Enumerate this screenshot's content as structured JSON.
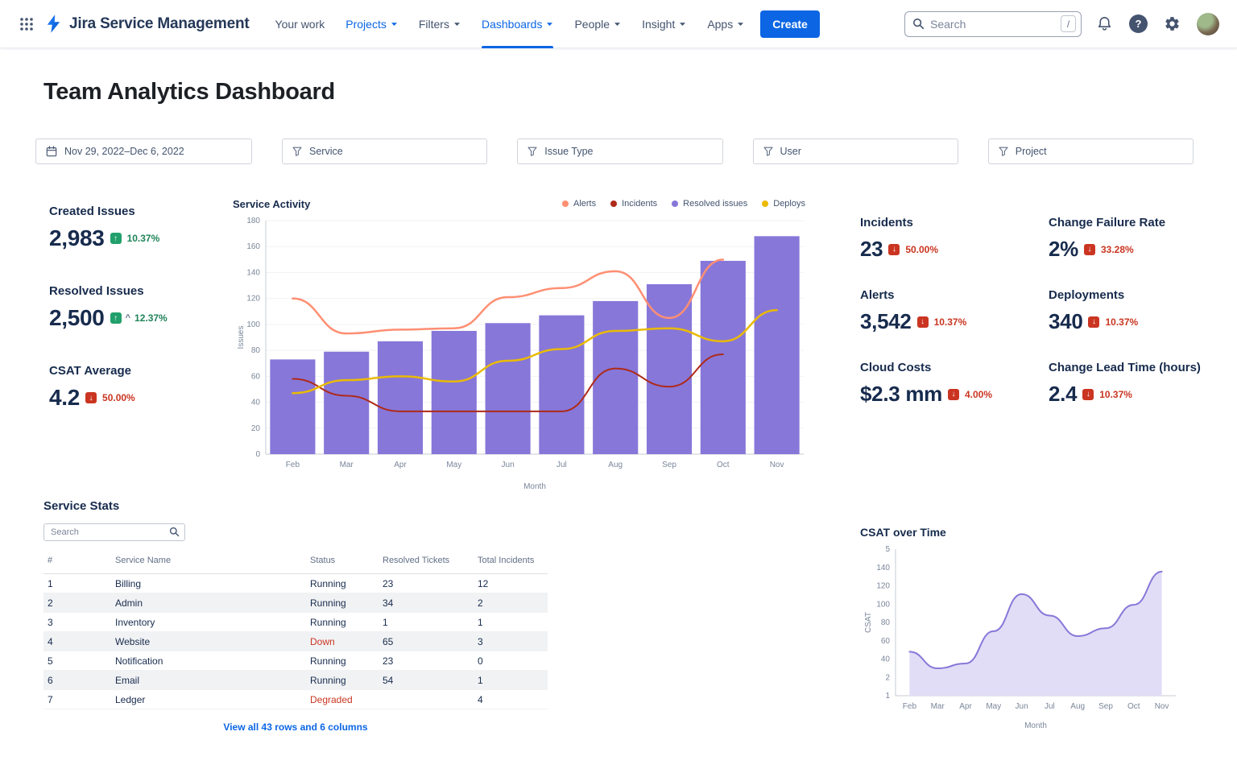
{
  "nav": {
    "app_name": "Jira Service Management",
    "items": [
      {
        "label": "Your work"
      },
      {
        "label": "Projects"
      },
      {
        "label": "Filters"
      },
      {
        "label": "Dashboards"
      },
      {
        "label": "People"
      },
      {
        "label": "Insight"
      },
      {
        "label": "Apps"
      }
    ],
    "create_label": "Create",
    "search_placeholder": "Search",
    "search_shortcut": "/",
    "help_glyph": "?"
  },
  "page": {
    "title": "Team Analytics Dashboard"
  },
  "filters": {
    "date_range": "Nov 29, 2022–Dec 6, 2022",
    "items": [
      "Service",
      "Issue Type",
      "User",
      "Project"
    ]
  },
  "kpis_left": [
    {
      "label": "Created Issues",
      "value": "2,983",
      "delta": "10.37%",
      "direction": "up"
    },
    {
      "label": "Resolved Issues",
      "value": "2,500",
      "caret": "^",
      "delta": "12.37%",
      "direction": "up"
    },
    {
      "label": "CSAT Average",
      "value": "4.2",
      "delta": "50.00%",
      "direction": "down"
    }
  ],
  "kpis_right": [
    {
      "label": "Incidents",
      "value": "23",
      "delta": "50.00%",
      "direction": "down"
    },
    {
      "label": "Change Failure Rate",
      "value": "2%",
      "delta": "33.28%",
      "direction": "down"
    },
    {
      "label": "Alerts",
      "value": "3,542",
      "delta": "10.37%",
      "direction": "down"
    },
    {
      "label": "Deployments",
      "value": "340",
      "delta": "10.37%",
      "direction": "down"
    },
    {
      "label": "Cloud Costs",
      "value": "$2.3 mm",
      "delta": "4.00%",
      "direction": "down"
    },
    {
      "label": "Change Lead Time (hours)",
      "value": "2.4",
      "delta": "10.37%",
      "direction": "down"
    }
  ],
  "service_stats": {
    "title": "Service Stats",
    "search_placeholder": "Search",
    "columns": [
      "#",
      "Service Name",
      "Status",
      "Resolved Tickets",
      "Total Incidents"
    ],
    "rows": [
      [
        "1",
        "Billing",
        "Running",
        "23",
        "12"
      ],
      [
        "2",
        "Admin",
        "Running",
        "34",
        "2"
      ],
      [
        "3",
        "Inventory",
        "Running",
        "1",
        "1"
      ],
      [
        "4",
        "Website",
        "Down",
        "65",
        "3"
      ],
      [
        "5",
        "Notification",
        "Running",
        "23",
        "0"
      ],
      [
        "6",
        "Email",
        "Running",
        "54",
        "1"
      ],
      [
        "7",
        "Ledger",
        "Degraded",
        "",
        "4"
      ]
    ],
    "footer_link": "View all 43 rows and 6 columns",
    "status_ok_value": "Running"
  },
  "chart_data": [
    {
      "type": "bar+line",
      "title": "Service Activity",
      "xlabel": "Month",
      "ylabel": "Issues",
      "ylim": [
        0,
        180
      ],
      "yticks": [
        0,
        20,
        40,
        60,
        80,
        100,
        120,
        140,
        160,
        180
      ],
      "categories": [
        "Feb",
        "Mar",
        "Apr",
        "May",
        "Jun",
        "Jul",
        "Aug",
        "Sep",
        "Oct",
        "Nov"
      ],
      "legend": [
        {
          "label": "Alerts",
          "color": "#FF8F73"
        },
        {
          "label": "Incidents",
          "color": "#AE2A19"
        },
        {
          "label": "Resolved issues",
          "color": "#8777D9"
        },
        {
          "label": "Deploys",
          "color": "#EABA05"
        }
      ],
      "series": [
        {
          "name": "Resolved issues",
          "type": "bar",
          "color": "#8777D9",
          "values": [
            73,
            79,
            87,
            95,
            101,
            107,
            118,
            131,
            149,
            168
          ]
        },
        {
          "name": "Alerts",
          "type": "line",
          "color": "#FF8F73",
          "width": 2.5,
          "values": [
            120,
            93,
            96,
            97,
            121,
            128,
            141,
            105,
            150,
            null
          ]
        },
        {
          "name": "Incidents",
          "type": "line",
          "color": "#AE2A19",
          "width": 2,
          "values": [
            58,
            45,
            33,
            33,
            33,
            33,
            66,
            52,
            77,
            null
          ]
        },
        {
          "name": "Deploys",
          "type": "line",
          "color": "#EABA05",
          "width": 2.5,
          "values": [
            47,
            57,
            60,
            56,
            72,
            81,
            95,
            97,
            87,
            111
          ]
        }
      ],
      "grid": true,
      "legend_position": "top-right"
    },
    {
      "type": "area",
      "title": "CSAT over Time",
      "xlabel": "Month",
      "ylabel": "CSAT",
      "ylim": [
        0,
        150
      ],
      "ytick_labels": [
        "5",
        "140",
        "120",
        "100",
        "80",
        "60",
        "40",
        "2",
        "1"
      ],
      "categories": [
        "Feb",
        "Mar",
        "Apr",
        "May",
        "Jun",
        "Jul",
        "Aug",
        "Sep",
        "Oct",
        "Nov"
      ],
      "series": [
        {
          "name": "CSAT",
          "type": "area",
          "color": "#8777D9",
          "fill": "#E2DDF6",
          "width": 2,
          "values": [
            45,
            28,
            33,
            66,
            104,
            82,
            61,
            69,
            93,
            127
          ]
        }
      ],
      "grid": false,
      "legend_position": "none"
    }
  ]
}
